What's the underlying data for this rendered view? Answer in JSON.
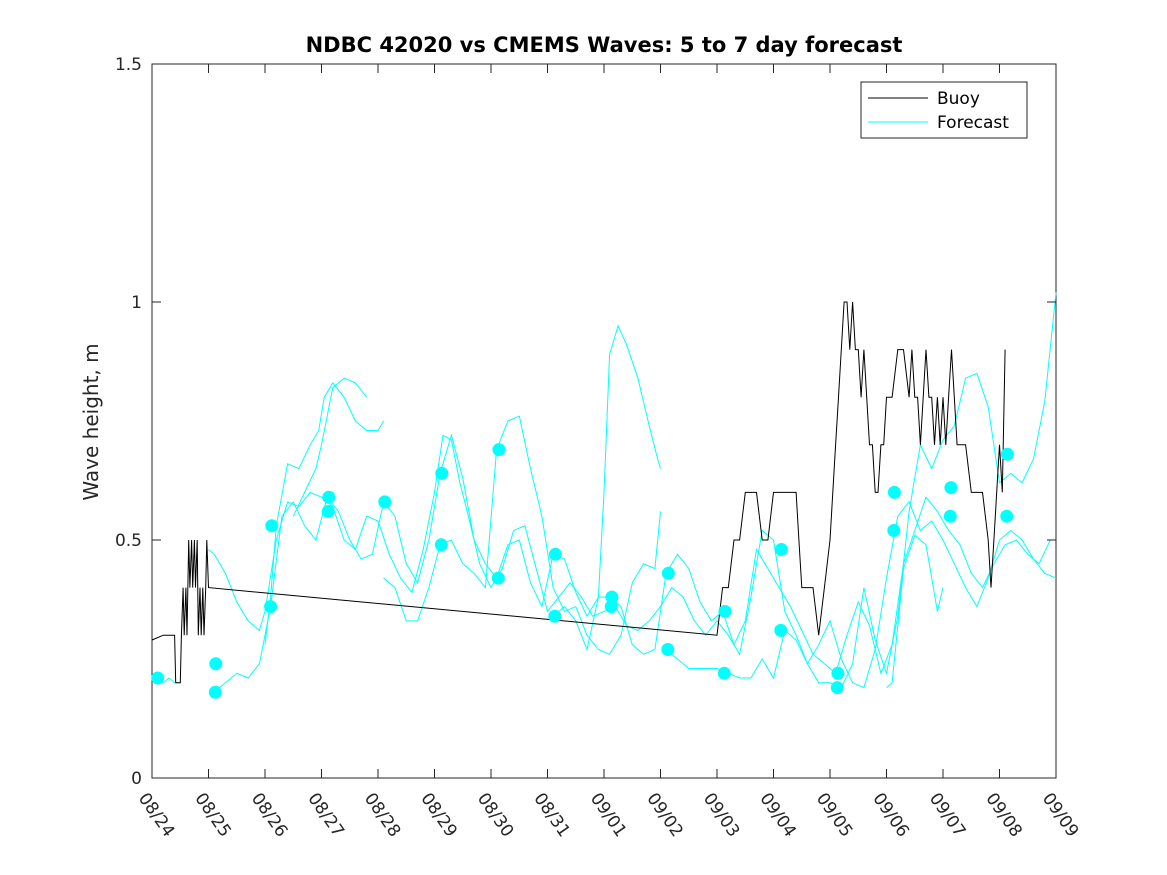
{
  "chart_data": {
    "type": "line",
    "title": "NDBC 42020 vs CMEMS Waves: 5 to 7 day forecast",
    "xlabel": "",
    "ylabel": "Wave height, m",
    "xlim": [
      0,
      16
    ],
    "ylim": [
      0,
      1.5
    ],
    "xticks": [
      0,
      1,
      2,
      3,
      4,
      5,
      6,
      7,
      8,
      9,
      10,
      11,
      12,
      13,
      14,
      15,
      16
    ],
    "xtick_labels": [
      "08/24",
      "08/25",
      "08/26",
      "08/27",
      "08/28",
      "08/29",
      "08/30",
      "08/31",
      "09/01",
      "09/02",
      "09/03",
      "09/04",
      "09/05",
      "09/06",
      "09/07",
      "09/08",
      "09/09"
    ],
    "yticks": [
      0,
      0.5,
      1,
      1.5
    ],
    "ytick_labels": [
      "0",
      "0.5",
      "1",
      "1.5"
    ],
    "grid": false,
    "legend": {
      "location": "top-right",
      "entries": [
        "Buoy",
        "Forecast"
      ]
    },
    "colors": {
      "buoy": "#000000",
      "forecast": "#00ffff",
      "axis": "#262626"
    },
    "buoy": {
      "name": "Buoy",
      "x": [
        0,
        0.2,
        0.4,
        0.42,
        0.5,
        0.52,
        0.55,
        0.57,
        0.6,
        0.62,
        0.65,
        0.67,
        0.7,
        0.72,
        0.75,
        0.77,
        0.8,
        0.82,
        0.85,
        0.87,
        0.9,
        0.92,
        0.95,
        0.97,
        1.0,
        10.0,
        10.05,
        10.1,
        10.2,
        10.3,
        10.4,
        10.5,
        10.6,
        10.7,
        10.8,
        10.9,
        11.0,
        11.1,
        11.2,
        11.3,
        11.4,
        11.45,
        11.5,
        11.6,
        11.7,
        11.8,
        11.9,
        12.0,
        12.05,
        12.1,
        12.15,
        12.2,
        12.25,
        12.3,
        12.35,
        12.4,
        12.45,
        12.5,
        12.55,
        12.6,
        12.65,
        12.7,
        12.75,
        12.8,
        12.85,
        12.9,
        12.95,
        13.0,
        13.1,
        13.2,
        13.3,
        13.4,
        13.45,
        13.5,
        13.55,
        13.6,
        13.65,
        13.7,
        13.75,
        13.8,
        13.85,
        13.9,
        13.95,
        14.0,
        14.05,
        14.1,
        14.15,
        14.2,
        14.25,
        14.3,
        14.4,
        14.5,
        14.6,
        14.7,
        14.8,
        14.85,
        14.9,
        14.95,
        15.0,
        15.05,
        15.1
      ],
      "y": [
        0.29,
        0.3,
        0.3,
        0.2,
        0.2,
        0.3,
        0.4,
        0.3,
        0.4,
        0.3,
        0.5,
        0.4,
        0.5,
        0.4,
        0.5,
        0.4,
        0.5,
        0.3,
        0.4,
        0.3,
        0.4,
        0.3,
        0.4,
        0.5,
        0.4,
        0.3,
        0.35,
        0.4,
        0.4,
        0.5,
        0.5,
        0.6,
        0.6,
        0.6,
        0.5,
        0.5,
        0.6,
        0.6,
        0.6,
        0.6,
        0.6,
        0.5,
        0.4,
        0.4,
        0.4,
        0.3,
        0.4,
        0.5,
        0.6,
        0.7,
        0.8,
        0.9,
        1.0,
        1.0,
        0.9,
        1.0,
        0.9,
        0.9,
        0.8,
        0.9,
        0.8,
        0.7,
        0.7,
        0.6,
        0.6,
        0.7,
        0.7,
        0.8,
        0.8,
        0.9,
        0.9,
        0.8,
        0.9,
        0.8,
        0.8,
        0.7,
        0.8,
        0.9,
        0.8,
        0.8,
        0.7,
        0.8,
        0.7,
        0.8,
        0.7,
        0.8,
        0.9,
        0.8,
        0.7,
        0.7,
        0.7,
        0.6,
        0.6,
        0.6,
        0.5,
        0.4,
        0.5,
        0.6,
        0.7,
        0.6,
        0.9
      ]
    },
    "forecast_series": [
      {
        "x": [
          0,
          0.1,
          0.2,
          0.3,
          0.4,
          0.5
        ],
        "y": [
          0.21,
          0.2,
          0.2,
          0.21,
          0.2,
          0.2
        ]
      },
      {
        "x": [
          1.0,
          1.1,
          1.2,
          1.3,
          1.5,
          1.7,
          1.9,
          2.0,
          2.2,
          2.4,
          2.6,
          2.8,
          3.0,
          3.2,
          3.4,
          3.6,
          3.8,
          4.0,
          4.2,
          4.4,
          4.6,
          4.8,
          5.0,
          5.15,
          5.3,
          5.45,
          5.6,
          5.8,
          6.0,
          6.2,
          6.4,
          6.6,
          6.8,
          7.0,
          7.2,
          7.4,
          7.6,
          7.8,
          8.0,
          8.2,
          8.4,
          8.6,
          8.8,
          9.0,
          9.2,
          9.4,
          9.6,
          9.8,
          10.0,
          10.2,
          10.4,
          10.6,
          10.8,
          11.0,
          11.2,
          11.4,
          11.6,
          11.8,
          12.0,
          12.2,
          12.4,
          12.6,
          12.8,
          13.0,
          13.2,
          13.4,
          13.6,
          13.8,
          14.0,
          14.2,
          14.4,
          14.6,
          14.8,
          15.0,
          15.2,
          15.4,
          15.6,
          15.8,
          16.0
        ],
        "y": [
          0.48,
          0.47,
          0.45,
          0.43,
          0.37,
          0.33,
          0.31,
          0.35,
          0.5,
          0.58,
          0.57,
          0.6,
          0.59,
          0.57,
          0.5,
          0.48,
          0.55,
          0.54,
          0.47,
          0.42,
          0.39,
          0.48,
          0.6,
          0.72,
          0.71,
          0.62,
          0.55,
          0.45,
          0.4,
          0.44,
          0.52,
          0.53,
          0.44,
          0.35,
          0.38,
          0.41,
          0.38,
          0.34,
          0.35,
          0.36,
          0.32,
          0.31,
          0.33,
          0.36,
          0.4,
          0.38,
          0.33,
          0.3,
          0.33,
          0.3,
          0.26,
          0.38,
          0.52,
          0.5,
          0.35,
          0.3,
          0.24,
          0.28,
          0.33,
          0.25,
          0.2,
          0.19,
          0.27,
          0.42,
          0.55,
          0.58,
          0.52,
          0.54,
          0.5,
          0.45,
          0.4,
          0.36,
          0.42,
          0.5,
          0.52,
          0.5,
          0.46,
          0.43,
          0.42
        ]
      },
      {
        "x": [
          1.1,
          1.3,
          1.5,
          1.7,
          1.9,
          2.1,
          2.3,
          2.5,
          2.7,
          2.9,
          3.1,
          3.3,
          3.5,
          3.7,
          3.9,
          4.1,
          4.3,
          4.5,
          4.7,
          4.9,
          5.1,
          5.3,
          5.5,
          5.7,
          5.9,
          6.1,
          6.3,
          6.5,
          6.7,
          6.9,
          7.1,
          7.3,
          7.5,
          7.7,
          7.9,
          8.1,
          8.3,
          8.5,
          8.7,
          8.9,
          9.1,
          9.3,
          9.5,
          9.7,
          9.9,
          10.1,
          10.3,
          10.5,
          10.7,
          10.9,
          11.1,
          11.3,
          11.5,
          11.7,
          11.9,
          12.1,
          12.3,
          12.5,
          12.7,
          12.9,
          13.1,
          13.3,
          13.5,
          13.7,
          13.9,
          14.1,
          14.3,
          14.5,
          14.7,
          14.9,
          15.1,
          15.3,
          15.5,
          15.7,
          15.9
        ],
        "y": [
          0.18,
          0.2,
          0.22,
          0.21,
          0.24,
          0.36,
          0.55,
          0.58,
          0.53,
          0.5,
          0.59,
          0.56,
          0.5,
          0.46,
          0.47,
          0.58,
          0.55,
          0.45,
          0.41,
          0.5,
          0.64,
          0.72,
          0.63,
          0.5,
          0.45,
          0.42,
          0.49,
          0.5,
          0.41,
          0.36,
          0.47,
          0.46,
          0.39,
          0.34,
          0.38,
          0.38,
          0.36,
          0.28,
          0.26,
          0.27,
          0.43,
          0.47,
          0.44,
          0.37,
          0.33,
          0.35,
          0.28,
          0.33,
          0.48,
          0.44,
          0.4,
          0.36,
          0.31,
          0.26,
          0.24,
          0.22,
          0.3,
          0.37,
          0.32,
          0.22,
          0.28,
          0.45,
          0.52,
          0.59,
          0.56,
          0.52,
          0.49,
          0.43,
          0.4,
          0.45,
          0.49,
          0.5,
          0.47,
          0.45,
          0.5
        ]
      },
      {
        "x": [
          2.0,
          2.1,
          2.2,
          2.4,
          2.6,
          2.8,
          2.95,
          3.05,
          3.2,
          3.4,
          3.6,
          3.8,
          4.0,
          4.1
        ],
        "y": [
          0.28,
          0.38,
          0.53,
          0.66,
          0.65,
          0.7,
          0.73,
          0.8,
          0.83,
          0.8,
          0.75,
          0.73,
          0.73,
          0.75
        ]
      },
      {
        "x": [
          2.5,
          2.7,
          2.9,
          3.0,
          3.2,
          3.4,
          3.6,
          3.8
        ],
        "y": [
          0.55,
          0.6,
          0.65,
          0.7,
          0.82,
          0.84,
          0.83,
          0.8
        ]
      },
      {
        "x": [
          4.1,
          4.3,
          4.5,
          4.7,
          4.9,
          5.1,
          5.3,
          5.5,
          5.7,
          5.9,
          6.1,
          6.3,
          6.5,
          6.7,
          6.9,
          7.1,
          7.3,
          7.5,
          7.7,
          7.9,
          8.1,
          8.3,
          8.5,
          8.7,
          8.9,
          9.0
        ],
        "y": [
          0.42,
          0.4,
          0.33,
          0.33,
          0.4,
          0.49,
          0.5,
          0.45,
          0.43,
          0.4,
          0.69,
          0.75,
          0.76,
          0.65,
          0.55,
          0.4,
          0.35,
          0.36,
          0.3,
          0.27,
          0.26,
          0.3,
          0.41,
          0.45,
          0.44,
          0.56
        ]
      },
      {
        "x": [
          7.1,
          7.3,
          7.5,
          7.7,
          7.9,
          8.0,
          8.1,
          8.25,
          8.4,
          8.6,
          8.8,
          8.95,
          9.0
        ],
        "y": [
          0.34,
          0.36,
          0.33,
          0.27,
          0.38,
          0.6,
          0.89,
          0.95,
          0.91,
          0.84,
          0.74,
          0.67,
          0.65
        ]
      },
      {
        "x": [
          9.1,
          9.3,
          9.5,
          9.7,
          9.9,
          10.0,
          10.2,
          10.4,
          10.6,
          10.8,
          11.0,
          11.2,
          11.4,
          11.6,
          11.8,
          12.0,
          12.2,
          12.4,
          12.6,
          12.8,
          13.0,
          13.2,
          13.4,
          13.6,
          13.8,
          14.0,
          14.2,
          14.4,
          14.6,
          14.8,
          15.0,
          15.2,
          15.4,
          15.6,
          15.8,
          16.0
        ],
        "y": [
          0.27,
          0.25,
          0.23,
          0.23,
          0.23,
          0.23,
          0.22,
          0.21,
          0.21,
          0.25,
          0.21,
          0.31,
          0.29,
          0.24,
          0.2,
          0.2,
          0.19,
          0.24,
          0.4,
          0.29,
          0.22,
          0.34,
          0.56,
          0.7,
          0.65,
          0.71,
          0.74,
          0.84,
          0.85,
          0.78,
          0.62,
          0.64,
          0.62,
          0.67,
          0.79,
          1.02
        ]
      },
      {
        "x": [
          13.0,
          13.1,
          13.3,
          13.5,
          13.7,
          13.9,
          14.0
        ],
        "y": [
          0.19,
          0.2,
          0.44,
          0.51,
          0.49,
          0.35,
          0.4
        ]
      }
    ],
    "forecast_markers": {
      "x": [
        0.1,
        1.12,
        1.13,
        2.1,
        2.12,
        3.12,
        3.13,
        4.12,
        5.12,
        5.13,
        6.13,
        6.14,
        7.13,
        7.14,
        8.13,
        8.14,
        9.13,
        9.14,
        10.13,
        10.14,
        11.13,
        11.14,
        12.13,
        12.14,
        13.13,
        13.14,
        14.13,
        14.14,
        15.13,
        15.14
      ],
      "y": [
        0.21,
        0.18,
        0.24,
        0.36,
        0.53,
        0.56,
        0.59,
        0.58,
        0.49,
        0.64,
        0.42,
        0.69,
        0.34,
        0.47,
        0.36,
        0.38,
        0.27,
        0.43,
        0.22,
        0.35,
        0.31,
        0.48,
        0.19,
        0.22,
        0.52,
        0.6,
        0.55,
        0.61,
        0.55,
        0.68
      ]
    }
  }
}
